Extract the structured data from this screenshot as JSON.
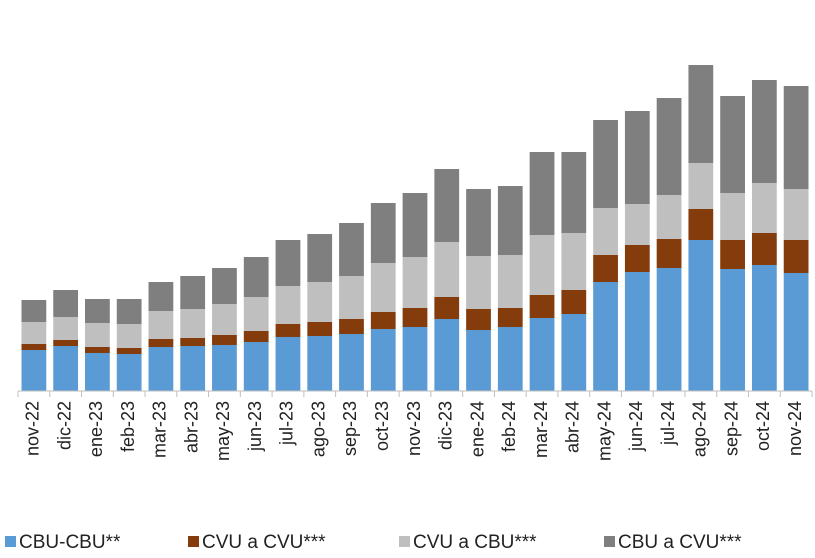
{
  "chart_data": {
    "type": "stacked_bar",
    "categories": [
      "nov-22",
      "dic-22",
      "ene-23",
      "feb-23",
      "mar-23",
      "abr-23",
      "may-23",
      "jun-23",
      "jul-23",
      "ago-23",
      "sep-23",
      "oct-23",
      "nov-23",
      "dic-23",
      "ene-24",
      "feb-24",
      "mar-24",
      "abr-24",
      "may-24",
      "jun-24",
      "jul-24",
      "ago-24",
      "sep-24",
      "oct-24",
      "nov-24"
    ],
    "series": [
      {
        "name": "CBU-CBU**",
        "color": "#5b9bd5",
        "values": [
          41,
          45,
          38,
          37,
          44,
          45,
          46,
          49,
          54,
          55,
          57,
          62,
          64,
          72,
          61,
          64,
          73,
          77,
          109,
          119,
          123,
          151,
          122,
          126,
          118
        ]
      },
      {
        "name": "CVU a CVU***",
        "color": "#843c0c",
        "values": [
          6,
          6,
          6,
          6,
          8,
          8,
          10,
          11,
          13,
          14,
          15,
          17,
          19,
          22,
          21,
          19,
          23,
          24,
          27,
          27,
          29,
          31,
          29,
          32,
          33
        ]
      },
      {
        "name": "CVU a CBU***",
        "color": "#bfbfbf",
        "values": [
          22,
          23,
          24,
          24,
          28,
          29,
          31,
          34,
          38,
          40,
          43,
          49,
          51,
          55,
          53,
          53,
          60,
          57,
          47,
          41,
          44,
          46,
          47,
          50,
          51
        ]
      },
      {
        "name": "CBU a CVU***",
        "color": "#7f7f7f",
        "values": [
          22,
          27,
          24,
          25,
          29,
          33,
          36,
          40,
          46,
          48,
          53,
          60,
          64,
          73,
          67,
          69,
          83,
          81,
          88,
          93,
          97,
          98,
          97,
          103,
          103
        ]
      }
    ],
    "ylim": [
      0,
      340
    ],
    "legend": "bottom"
  }
}
